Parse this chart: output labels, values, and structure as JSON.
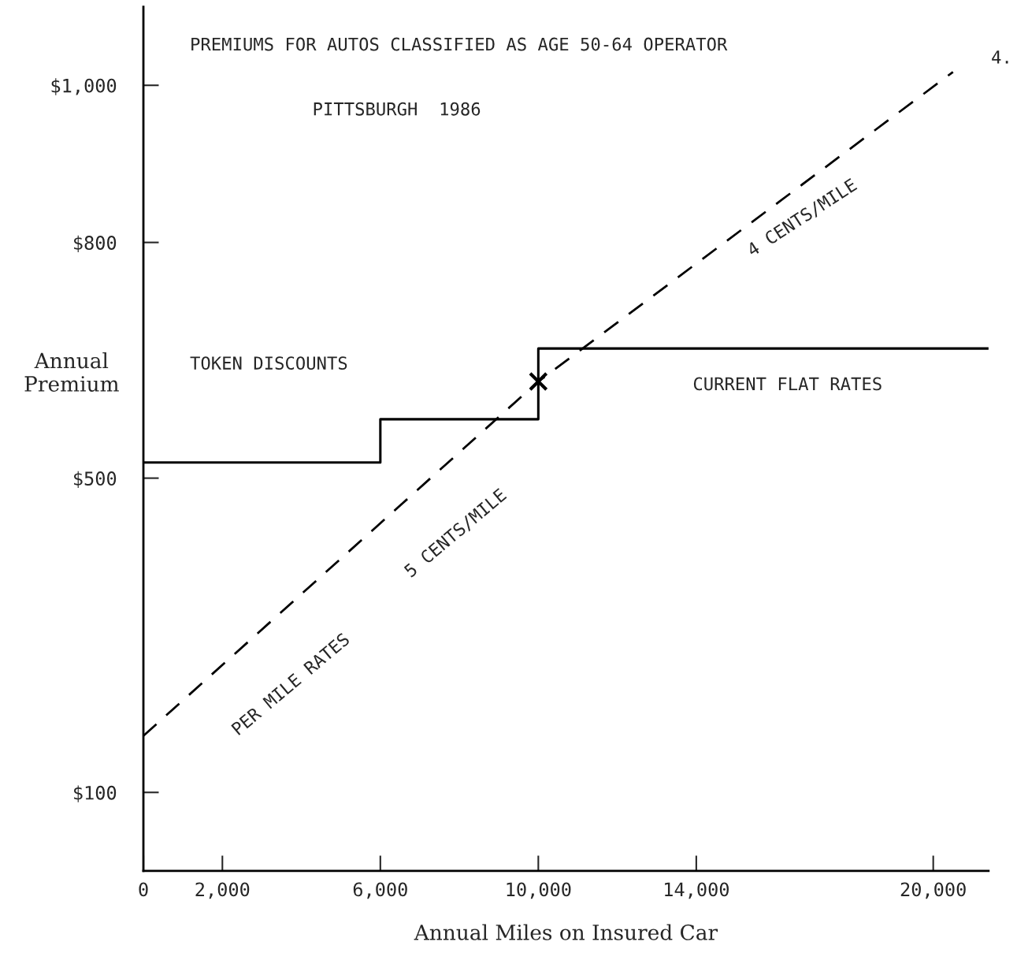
{
  "chart_data": {
    "type": "line",
    "title": "PREMIUMS FOR AUTOS CLASSIFIED AS AGE 50-64 OPERATOR",
    "subtitle": "PITTSBURGH  1986",
    "xlabel": "Annual Miles on Insured Car",
    "ylabel": "Annual\nPremium",
    "series": [
      {
        "type": "step",
        "color": "#000000",
        "line_style": "solid",
        "x": [
          0,
          6000,
          10000,
          21400
        ],
        "values": [
          520,
          575,
          665,
          665
        ]
      },
      {
        "color": "#000000",
        "line_style": "dashed",
        "x": [
          0,
          10000,
          20500
        ],
        "values": [
          172,
          623,
          1017
        ]
      },
      {
        "type": "scatter",
        "color": "#000000",
        "marker": "cross",
        "x": [
          10000
        ],
        "values": [
          623
        ]
      }
    ],
    "xlim": [
      0,
      21400
    ],
    "ylim": [
      0,
      1100
    ],
    "xticks": [
      0,
      {
        "value": 2000,
        "label": "2,000"
      },
      {
        "value": 6000,
        "label": "6,000"
      },
      {
        "value": 10000,
        "label": "10,000"
      },
      {
        "value": 14000,
        "label": "14,000"
      },
      {
        "value": 20000,
        "label": "20,000"
      }
    ],
    "yticks": [
      {
        "value": 100,
        "label": "$100"
      },
      {
        "value": 500,
        "label": "$500"
      },
      {
        "value": 800,
        "label": "$800"
      },
      {
        "value": 1000,
        "label": "$1,000"
      }
    ],
    "annotations": [
      "TOKEN DISCOUNTS",
      "CURRENT FLAT RATES",
      "PER MILE RATES",
      "5 CENTS/MILE",
      "4 CENTS/MILE",
      "4."
    ],
    "grid": false,
    "legend": false
  }
}
